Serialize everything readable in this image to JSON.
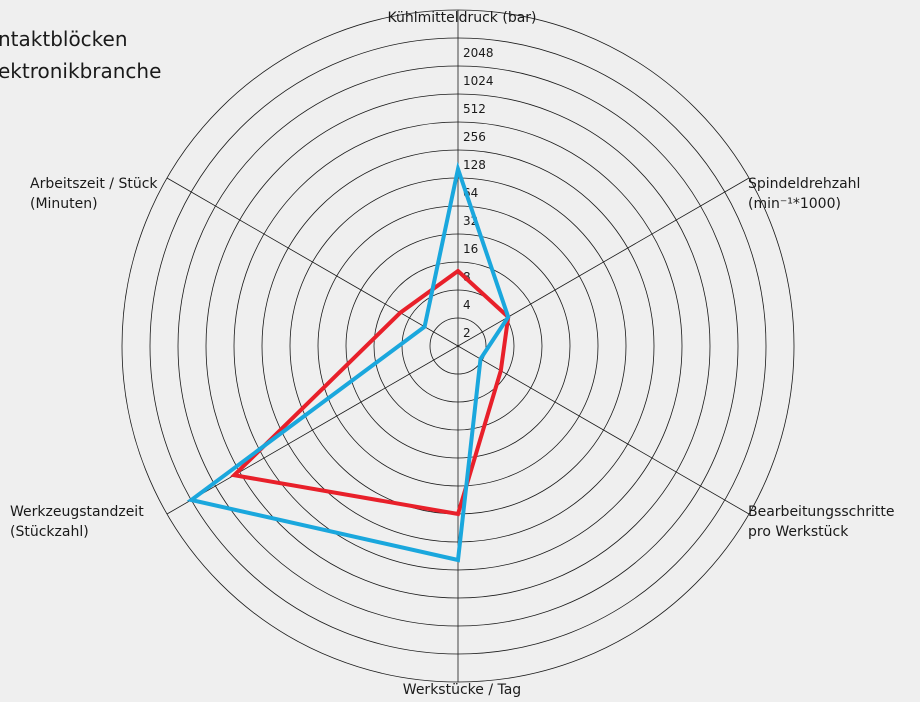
{
  "title_lines": [
    "ntaktblöcken",
    "ektronikbranche"
  ],
  "chart_data": {
    "type": "radar",
    "axes": [
      {
        "label_lines": [
          "Kühlmitteldruck (bar)"
        ]
      },
      {
        "label_lines": [
          "Spindeldrehzahl",
          "(min⁻¹*1000)"
        ]
      },
      {
        "label_lines": [
          "Bearbeitungsschritte",
          "pro Werkstück"
        ]
      },
      {
        "label_lines": [
          "Werkstücke / Tag"
        ]
      },
      {
        "label_lines": [
          "Werkzeugstandzeit",
          "(Stückzahl)"
        ]
      },
      {
        "label_lines": [
          "Arbeitszeit / Stück",
          "(Minuten)"
        ]
      }
    ],
    "ring_ticks": [
      "2",
      "4",
      "8",
      "16",
      "32",
      "64",
      "128",
      "256",
      "512",
      "1024",
      "2048"
    ],
    "scale": "log2",
    "series": [
      {
        "color": "#e8202a",
        "values": [
          6.4,
          4.2,
          3.4,
          64,
          600,
          5.2
        ]
      },
      {
        "color": "#1aa7dd",
        "values": [
          80,
          4.2,
          1.9,
          200,
          2048,
          2.6
        ]
      }
    ]
  }
}
